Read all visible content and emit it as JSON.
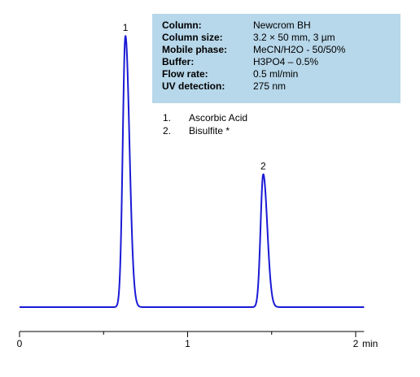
{
  "info": [
    {
      "key": "Column:",
      "value": "Newcrom BH"
    },
    {
      "key": "Column size:",
      "value": "3.2 × 50 mm, 3 µm"
    },
    {
      "key": "Mobile phase:",
      "value": "MeCN/H2O - 50/50%"
    },
    {
      "key": "Buffer:",
      "value": "H3PO4 – 0.5%"
    },
    {
      "key": "Flow rate:",
      "value": "0.5 ml/min"
    },
    {
      "key": "UV detection:",
      "value": "275 nm"
    }
  ],
  "legend": [
    {
      "num": "1.",
      "name": "Ascorbic Acid"
    },
    {
      "num": "2.",
      "name": "Bisulfite *"
    }
  ],
  "chart_data": {
    "type": "line",
    "title": "",
    "xlabel": "",
    "ylabel": "",
    "x_unit": "min",
    "xlim": [
      0,
      2.05
    ],
    "x_ticks": [
      0,
      1,
      2
    ],
    "x_tick_labels": [
      "0",
      "1",
      "2"
    ],
    "grid": false,
    "line_color": "#1a1ad6",
    "baseline": 0,
    "peaks": [
      {
        "label": "1",
        "retention_time": 0.63,
        "height": 1.0
      },
      {
        "label": "2",
        "retention_time": 1.45,
        "height": 0.49
      }
    ]
  }
}
